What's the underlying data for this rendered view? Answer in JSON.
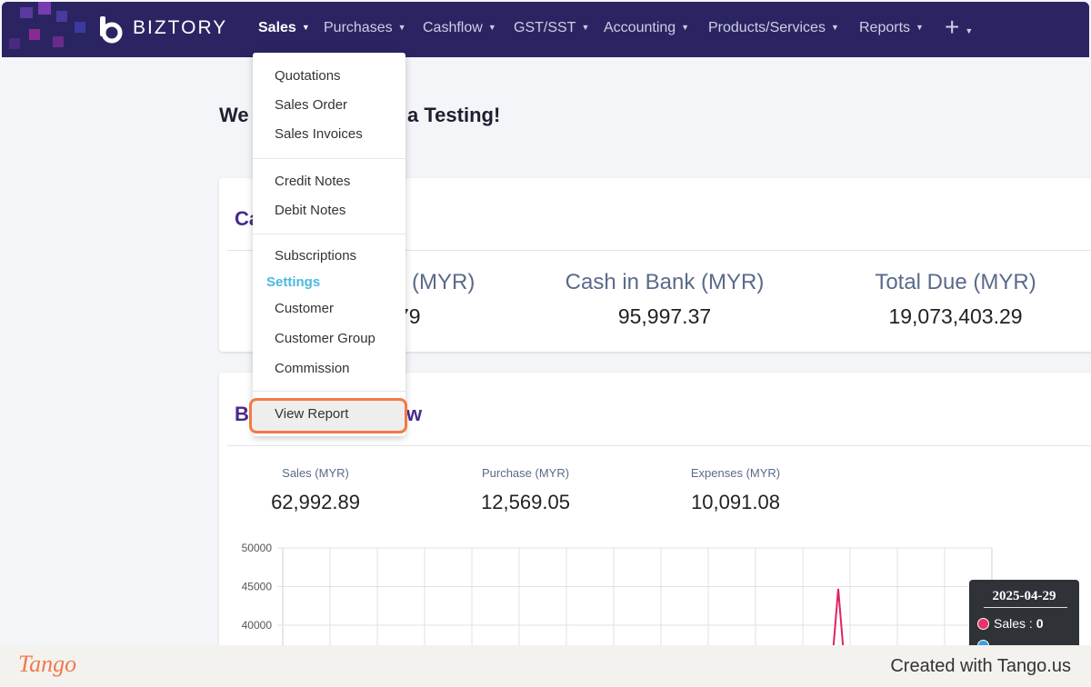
{
  "nav": {
    "brand": "BIZTORY",
    "items": [
      "Sales",
      "Purchases",
      "Cashflow",
      "GST/SST",
      "Accounting",
      "Products/Services",
      "Reports"
    ],
    "plus": "+"
  },
  "welcome": {
    "start": "We",
    "end": "a Testing!"
  },
  "cash_card": {
    "title_fragment": "Ca",
    "stat_fragment_label": "(MYR)",
    "stat_fragment_value": "79",
    "stats": [
      {
        "label": "Cash in Bank (MYR)",
        "value": "95,997.37"
      },
      {
        "label": "Total Due (MYR)",
        "value": "19,073,403.29"
      }
    ]
  },
  "overview_card": {
    "title_start": "B",
    "title_end": "w",
    "stats": [
      {
        "label": "Sales (MYR)",
        "value": "62,992.89"
      },
      {
        "label": "Purchase (MYR)",
        "value": "12,569.05"
      },
      {
        "label": "Expenses (MYR)",
        "value": "10,091.08"
      }
    ]
  },
  "chart": {
    "yticks": [
      50000,
      45000,
      40000
    ]
  },
  "tooltip": {
    "date": "2025-04-29",
    "label": "Sales : ",
    "value": "0"
  },
  "dropdown": {
    "items": [
      "Quotations",
      "Sales Order",
      "Sales Invoices",
      "Credit Notes",
      "Debit Notes",
      "Subscriptions"
    ],
    "section": "Settings",
    "settings_items": [
      "Customer",
      "Customer Group",
      "Commission"
    ],
    "highlighted": "View Report"
  },
  "footer": {
    "logo": "Tango",
    "credit": "Created with Tango.us"
  }
}
